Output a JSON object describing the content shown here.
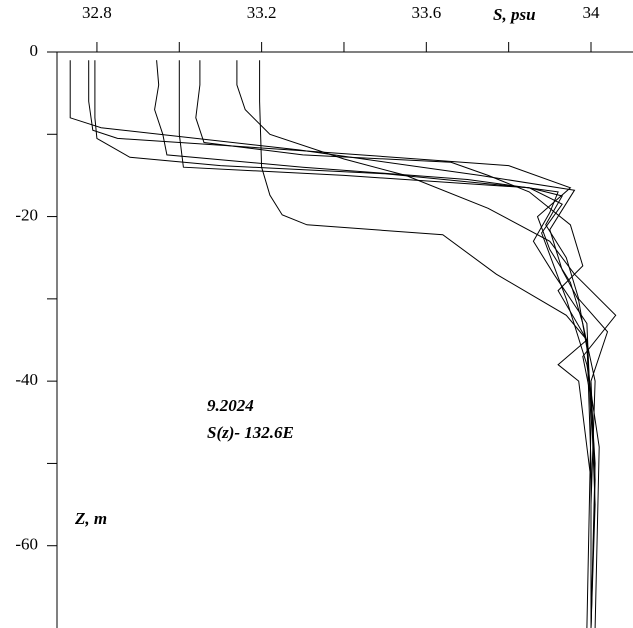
{
  "chart_data": {
    "type": "line",
    "xlabel": "S, psu",
    "ylabel": "Z, m",
    "annotations": [
      "9.2024",
      "S(z)- 132.6E"
    ],
    "xlim": [
      32.703,
      34.102
    ],
    "xticks": [
      32.8,
      33.2,
      33.6,
      34
    ],
    "xminor_ticks": [
      33,
      33.4,
      33.8
    ],
    "ylim": [
      -70,
      0
    ],
    "yticks": [
      0,
      -20,
      -40,
      -60
    ],
    "yminor_ticks": [
      -10,
      -30,
      -50
    ],
    "x_axis_position": "top",
    "series": [
      {
        "color": "#000000",
        "x": [
          32.735,
          32.735,
          32.81,
          33.29,
          33.73,
          33.96,
          33.9,
          33.93,
          33.97,
          33.99,
          34.0,
          34.01,
          34.0
        ],
        "values": [
          -1,
          -8,
          -9.2,
          -11.9,
          -15,
          -16.8,
          -21.6,
          -26.5,
          -30.2,
          -36,
          -42,
          -50,
          -70
        ]
      },
      {
        "color": "#000000",
        "x": [
          32.78,
          32.78,
          32.79,
          32.85,
          33.3,
          33.8,
          33.95,
          33.87,
          33.9,
          33.95,
          33.98,
          34.01,
          34.0,
          34.0
        ],
        "values": [
          -1,
          -6,
          -9.5,
          -10.5,
          -12,
          -13.8,
          -16.5,
          -20,
          -24,
          -28,
          -33,
          -40,
          -55,
          -70
        ]
      },
      {
        "color": "#000000",
        "x": [
          32.795,
          32.795,
          32.8,
          32.88,
          33.1,
          33.5,
          33.85,
          33.93,
          33.88,
          33.91,
          33.94,
          33.99,
          34.02,
          34.01
        ],
        "values": [
          -1,
          -8,
          -10.5,
          -12.8,
          -13.8,
          -14.8,
          -16.5,
          -18.5,
          -22,
          -26,
          -30,
          -38,
          -48,
          -70
        ]
      },
      {
        "color": "#000000",
        "x": [
          32.945,
          32.95,
          32.94,
          32.96,
          32.97,
          33.3,
          33.7,
          33.92,
          33.9,
          33.86,
          33.91,
          33.99,
          34.0,
          33.99
        ],
        "values": [
          -1,
          -4,
          -7,
          -10,
          -12.5,
          -14,
          -15.5,
          -17,
          -19.5,
          -23,
          -27,
          -33,
          -45,
          -70
        ]
      },
      {
        "color": "#000000",
        "x": [
          33.0,
          33.0,
          33.0,
          33.01,
          33.4,
          33.85,
          33.93,
          33.89,
          33.94,
          33.97,
          34.04,
          34.0,
          34.01,
          34.0
        ],
        "values": [
          -1,
          -5,
          -10,
          -14,
          -15,
          -16.5,
          -17.5,
          -21,
          -25,
          -30,
          -34,
          -40,
          -52,
          -70
        ]
      },
      {
        "color": "#000000",
        "x": [
          33.05,
          33.05,
          33.04,
          33.06,
          33.3,
          33.66,
          33.75,
          33.85,
          33.95,
          33.98,
          33.92,
          33.99,
          34.0,
          34.0
        ],
        "values": [
          -1,
          -4,
          -8,
          -11,
          -12.5,
          -13.4,
          -15,
          -17,
          -21,
          -26,
          -29,
          -35,
          -50,
          -70
        ]
      },
      {
        "color": "#000000",
        "x": [
          33.14,
          33.14,
          33.16,
          33.22,
          33.4,
          33.55,
          33.75,
          33.9,
          33.96,
          34.06,
          33.98,
          34.0,
          34.01,
          34.0
        ],
        "values": [
          -1,
          -4,
          -7,
          -10,
          -13,
          -15,
          -19,
          -23,
          -27,
          -32,
          -37,
          -42,
          -55,
          -70
        ]
      },
      {
        "color": "#000000",
        "x": [
          33.195,
          33.195,
          33.2,
          33.22,
          33.25,
          33.31,
          33.64,
          33.77,
          33.94,
          33.99,
          33.92,
          33.97,
          34.0,
          34.0
        ],
        "values": [
          -1,
          -6,
          -14,
          -17.4,
          -19.8,
          -21,
          -22.2,
          -27,
          -32,
          -35,
          -38,
          -40,
          -52,
          -70
        ]
      }
    ]
  }
}
